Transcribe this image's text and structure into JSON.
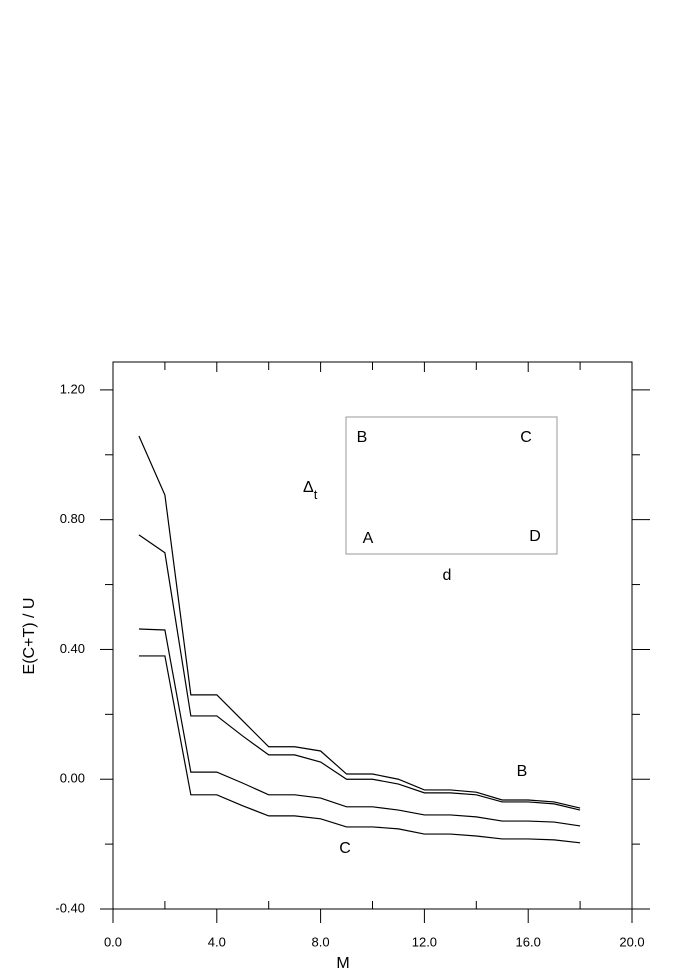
{
  "chart_data": {
    "type": "line",
    "xlabel": "M",
    "ylabel": "E(C+T) / U",
    "x": [
      1,
      2,
      3,
      4,
      5,
      6,
      7,
      8,
      9,
      10,
      11,
      12,
      13,
      14,
      15,
      16,
      17,
      18
    ],
    "series": [
      {
        "color": "#000000",
        "values": [
          1.058,
          0.876,
          0.26,
          0.26,
          0.18,
          0.1,
          0.1,
          0.087,
          0.016,
          0.016,
          0.0,
          -0.033,
          -0.033,
          -0.04,
          -0.064,
          -0.064,
          -0.07,
          -0.089
        ]
      },
      {
        "color": "#000000",
        "values": [
          0.753,
          0.698,
          0.195,
          0.195,
          0.133,
          0.075,
          0.075,
          0.053,
          0.0,
          0.0,
          -0.015,
          -0.042,
          -0.042,
          -0.048,
          -0.07,
          -0.07,
          -0.076,
          -0.095
        ]
      },
      {
        "color": "#000000",
        "values": [
          0.463,
          0.46,
          0.022,
          0.022,
          -0.012,
          -0.048,
          -0.048,
          -0.058,
          -0.085,
          -0.085,
          -0.095,
          -0.11,
          -0.11,
          -0.116,
          -0.129,
          -0.129,
          -0.132,
          -0.144
        ]
      },
      {
        "color": "#000000",
        "values": [
          0.38,
          0.38,
          -0.048,
          -0.048,
          -0.082,
          -0.113,
          -0.113,
          -0.122,
          -0.147,
          -0.147,
          -0.153,
          -0.169,
          -0.169,
          -0.175,
          -0.184,
          -0.184,
          -0.187,
          -0.196
        ]
      }
    ],
    "annotations": [
      "B",
      "C"
    ],
    "inset": {
      "corner_labels": [
        "B",
        "C",
        "A",
        "D"
      ],
      "height_label": "Δ",
      "height_subscript": "t",
      "width_label": "d"
    },
    "xlim": [
      0,
      20
    ],
    "ylim": [
      -0.4,
      1.286
    ],
    "xticks": [
      {
        "value": 0,
        "label": "0.0"
      },
      {
        "value": 4,
        "label": "4.0"
      },
      {
        "value": 8,
        "label": "8.0"
      },
      {
        "value": 12,
        "label": "12.0"
      },
      {
        "value": 16,
        "label": "16.0"
      },
      {
        "value": 20,
        "label": "20.0"
      }
    ],
    "yticks": [
      {
        "value": -0.4,
        "label": "-0.40"
      },
      {
        "value": 0,
        "label": "0.00"
      },
      {
        "value": 0.4,
        "label": "0.40"
      },
      {
        "value": 0.8,
        "label": "0.80"
      },
      {
        "value": 1.2,
        "label": "1.20"
      }
    ],
    "xminorticks": [
      2,
      6,
      10,
      14,
      18
    ],
    "yminorticks": [
      -0.2,
      0.2,
      0.6,
      1.0
    ]
  }
}
